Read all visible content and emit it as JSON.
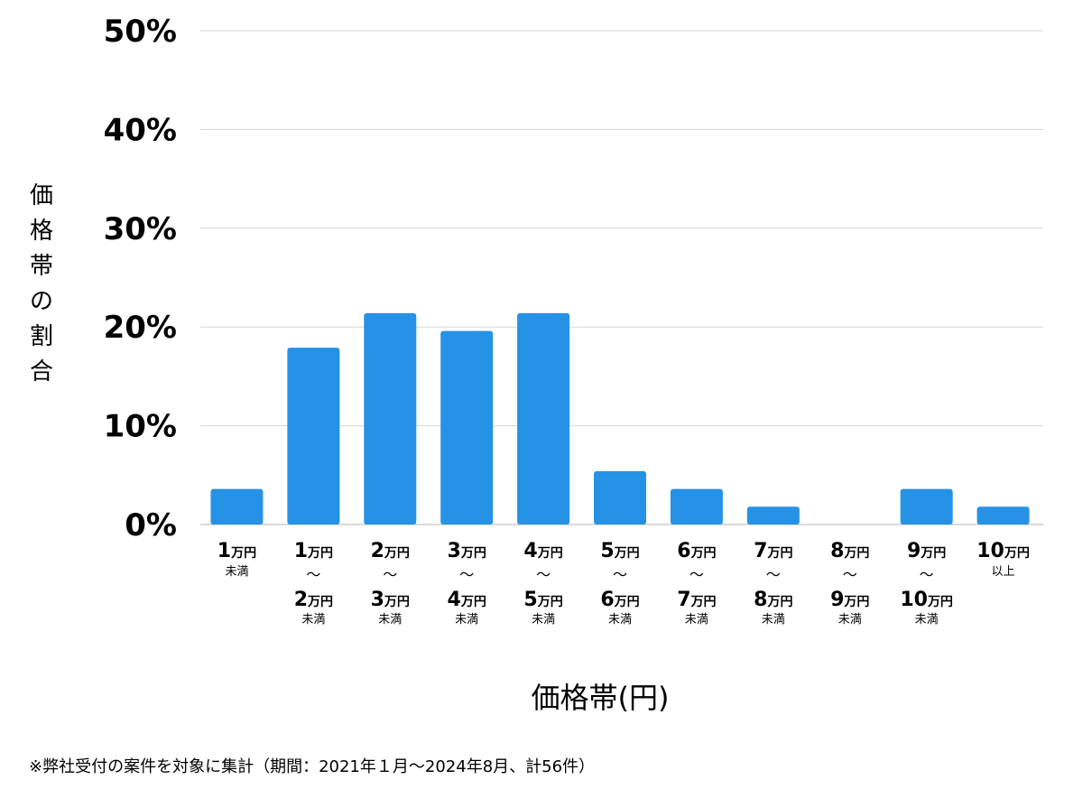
{
  "chart_data": {
    "type": "bar",
    "ylabel": "価格帯の割合",
    "xlabel": "価格帯(円)",
    "ylim": [
      0,
      50
    ],
    "yticks": [
      "0%",
      "10%",
      "20%",
      "30%",
      "40%",
      "50%"
    ],
    "grid": true,
    "bar_color": "#2592e6",
    "categories": [
      "1万円未満",
      "1万円〜2万円未満",
      "2万円〜3万円未満",
      "3万円〜4万円未満",
      "4万円〜5万円未満",
      "5万円〜6万円未満",
      "6万円〜7万円未満",
      "7万円〜8万円未満",
      "8万円〜9万円未満",
      "9万円〜10万円未満",
      "10万円以上"
    ],
    "tick_labels": [
      {
        "lo": "1",
        "hi": "",
        "suffix": "未満"
      },
      {
        "lo": "1",
        "hi": "2",
        "suffix": "未満"
      },
      {
        "lo": "2",
        "hi": "3",
        "suffix": "未満"
      },
      {
        "lo": "3",
        "hi": "4",
        "suffix": "未満"
      },
      {
        "lo": "4",
        "hi": "5",
        "suffix": "未満"
      },
      {
        "lo": "5",
        "hi": "6",
        "suffix": "未満"
      },
      {
        "lo": "6",
        "hi": "7",
        "suffix": "未満"
      },
      {
        "lo": "7",
        "hi": "8",
        "suffix": "未満"
      },
      {
        "lo": "8",
        "hi": "9",
        "suffix": "未満"
      },
      {
        "lo": "9",
        "hi": "10",
        "suffix": "未満"
      },
      {
        "lo": "10",
        "hi": "",
        "suffix": "以上"
      }
    ],
    "unit": "万円",
    "range_symbol": "〜",
    "values": [
      3.6,
      17.9,
      21.4,
      19.6,
      21.4,
      5.4,
      3.6,
      1.8,
      0,
      3.6,
      1.8
    ]
  },
  "footnote": "※弊社受付の案件を対象に集計（期間：2021年１月〜2024年8月、計56件）"
}
